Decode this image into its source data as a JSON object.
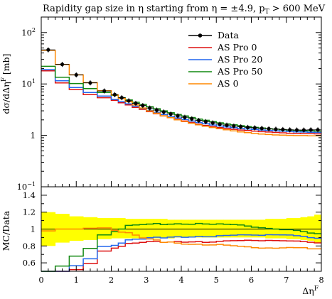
{
  "chart_data": {
    "type": "line",
    "title": "Rapidity gap size in η starting from η = ±4.9, p",
    "title_sub": "T",
    "title_tail": " > 600 MeV",
    "ylabel": "dσ/dΔη",
    "ylabel_sup": "F",
    "ylabel_unit": " [mb]",
    "xlabel": "Δη",
    "xlabel_sup": "F",
    "ratio_ylabel": "MC/Data",
    "xlim": [
      0,
      8
    ],
    "ylim": [
      0.1,
      200
    ],
    "ylog": true,
    "ratio_ylim": [
      0.5,
      1.5
    ],
    "legend_position": "top-right",
    "x_ticks": [
      "0",
      "1",
      "2",
      "3",
      "4",
      "5",
      "6",
      "7",
      "8"
    ],
    "y_ticks": [
      {
        "value": 100,
        "base": "10",
        "exp": "2"
      },
      {
        "value": 10,
        "base": "10",
        "exp": "1"
      },
      {
        "value": 1,
        "base": "1",
        "exp": ""
      },
      {
        "value": 0.1,
        "base": "10",
        "exp": "−1"
      }
    ],
    "ratio_ticks": [
      "0.6",
      "0.8",
      "1",
      "1.2",
      "1.4"
    ],
    "bin_edges": [
      0,
      0.4,
      0.8,
      1.2,
      1.6,
      2.0,
      2.2,
      2.4,
      2.6,
      2.8,
      3.0,
      3.2,
      3.4,
      3.6,
      3.8,
      4.0,
      4.2,
      4.4,
      4.6,
      4.8,
      5.0,
      5.2,
      5.4,
      5.6,
      5.8,
      6.0,
      6.2,
      6.4,
      6.6,
      6.8,
      7.0,
      7.2,
      7.4,
      7.6,
      7.8,
      8.0
    ],
    "data": {
      "name": "Data",
      "color": "#000000",
      "values": [
        46,
        24,
        15,
        10.5,
        7.3,
        6.2,
        5.4,
        4.7,
        4.2,
        3.8,
        3.4,
        3.1,
        2.85,
        2.6,
        2.4,
        2.25,
        2.1,
        1.95,
        1.85,
        1.75,
        1.65,
        1.58,
        1.52,
        1.47,
        1.43,
        1.4,
        1.37,
        1.34,
        1.32,
        1.3,
        1.28,
        1.27,
        1.27,
        1.28,
        1.28
      ]
    },
    "series": [
      {
        "name": "AS Pro 0",
        "color": "#dd1111",
        "values": [
          18,
          10.5,
          7.8,
          6.2,
          5.4,
          4.8,
          4.3,
          3.9,
          3.5,
          3.2,
          2.9,
          2.65,
          2.4,
          2.2,
          2.05,
          1.9,
          1.78,
          1.66,
          1.56,
          1.48,
          1.41,
          1.36,
          1.31,
          1.27,
          1.24,
          1.21,
          1.18,
          1.16,
          1.14,
          1.12,
          1.1,
          1.09,
          1.08,
          1.08,
          1.07
        ]
      },
      {
        "name": "AS Pro 20",
        "color": "#2266ee",
        "values": [
          19,
          11.5,
          8.5,
          6.8,
          5.8,
          5.0,
          4.5,
          4.1,
          3.7,
          3.35,
          3.05,
          2.8,
          2.55,
          2.35,
          2.18,
          2.03,
          1.9,
          1.78,
          1.68,
          1.59,
          1.52,
          1.46,
          1.41,
          1.37,
          1.33,
          1.3,
          1.27,
          1.25,
          1.23,
          1.21,
          1.19,
          1.17,
          1.16,
          1.15,
          1.14
        ]
      },
      {
        "name": "AS Pro 50",
        "color": "#118811",
        "values": [
          22,
          13.5,
          10.2,
          8.1,
          6.8,
          6.0,
          5.4,
          4.9,
          4.4,
          4.0,
          3.6,
          3.3,
          3.0,
          2.75,
          2.55,
          2.38,
          2.22,
          2.08,
          1.96,
          1.85,
          1.75,
          1.67,
          1.6,
          1.54,
          1.48,
          1.43,
          1.39,
          1.35,
          1.32,
          1.29,
          1.27,
          1.25,
          1.23,
          1.22,
          1.21
        ]
      },
      {
        "name": "AS 0",
        "color": "#ff8800",
        "values": [
          45,
          24,
          15,
          10.6,
          7.4,
          6.1,
          5.2,
          4.5,
          3.9,
          3.4,
          3.0,
          2.7,
          2.4,
          2.2,
          2.0,
          1.85,
          1.72,
          1.6,
          1.5,
          1.42,
          1.35,
          1.28,
          1.22,
          1.17,
          1.13,
          1.09,
          1.06,
          1.04,
          1.02,
          1.01,
          1.0,
          0.99,
          0.99,
          0.98,
          0.98
        ]
      }
    ],
    "ratio_band": {
      "color": "#ffff00",
      "upper": [
        1.2,
        1.18,
        1.15,
        1.14,
        1.13,
        1.13,
        1.13,
        1.12,
        1.12,
        1.12,
        1.12,
        1.12,
        1.12,
        1.11,
        1.11,
        1.11,
        1.11,
        1.11,
        1.11,
        1.11,
        1.11,
        1.11,
        1.11,
        1.11,
        1.11,
        1.11,
        1.11,
        1.12,
        1.12,
        1.12,
        1.13,
        1.13,
        1.14,
        1.15,
        1.17
      ],
      "lower": [
        0.8,
        0.84,
        0.86,
        0.87,
        0.88,
        0.89,
        0.89,
        0.89,
        0.89,
        0.89,
        0.89,
        0.89,
        0.89,
        0.89,
        0.9,
        0.9,
        0.9,
        0.9,
        0.9,
        0.9,
        0.9,
        0.9,
        0.9,
        0.9,
        0.9,
        0.9,
        0.9,
        0.89,
        0.89,
        0.89,
        0.88,
        0.88,
        0.87,
        0.86,
        0.84
      ]
    }
  }
}
